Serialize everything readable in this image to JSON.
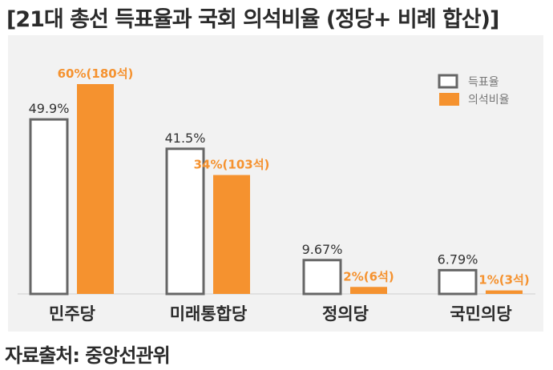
{
  "title": "[21대 총선 득표율과 국회 의석비율 (정당+ 비례 합산)]",
  "source": "자료출처: 중앙선관위",
  "colors": {
    "vote": "#ffffff",
    "vote_border": "#666666",
    "seat": "#f5922f",
    "panel": "#f2f2f2"
  },
  "chart_data": {
    "type": "bar",
    "categories": [
      "민주당",
      "미래통합당",
      "정의당",
      "국민의당"
    ],
    "series": [
      {
        "name": "득표율",
        "values": [
          49.9,
          41.5,
          9.67,
          6.79
        ],
        "labels": [
          "49.9%",
          "41.5%",
          "9.67%",
          "6.79%"
        ]
      },
      {
        "name": "의석비율",
        "values": [
          60,
          34,
          2,
          1
        ],
        "labels": [
          "60%(180석)",
          "34%(103석)",
          "2%(6석)",
          "1%(3석)"
        ]
      }
    ],
    "legend_position": "top-right",
    "ylim": [
      0,
      60
    ],
    "grid": false
  }
}
